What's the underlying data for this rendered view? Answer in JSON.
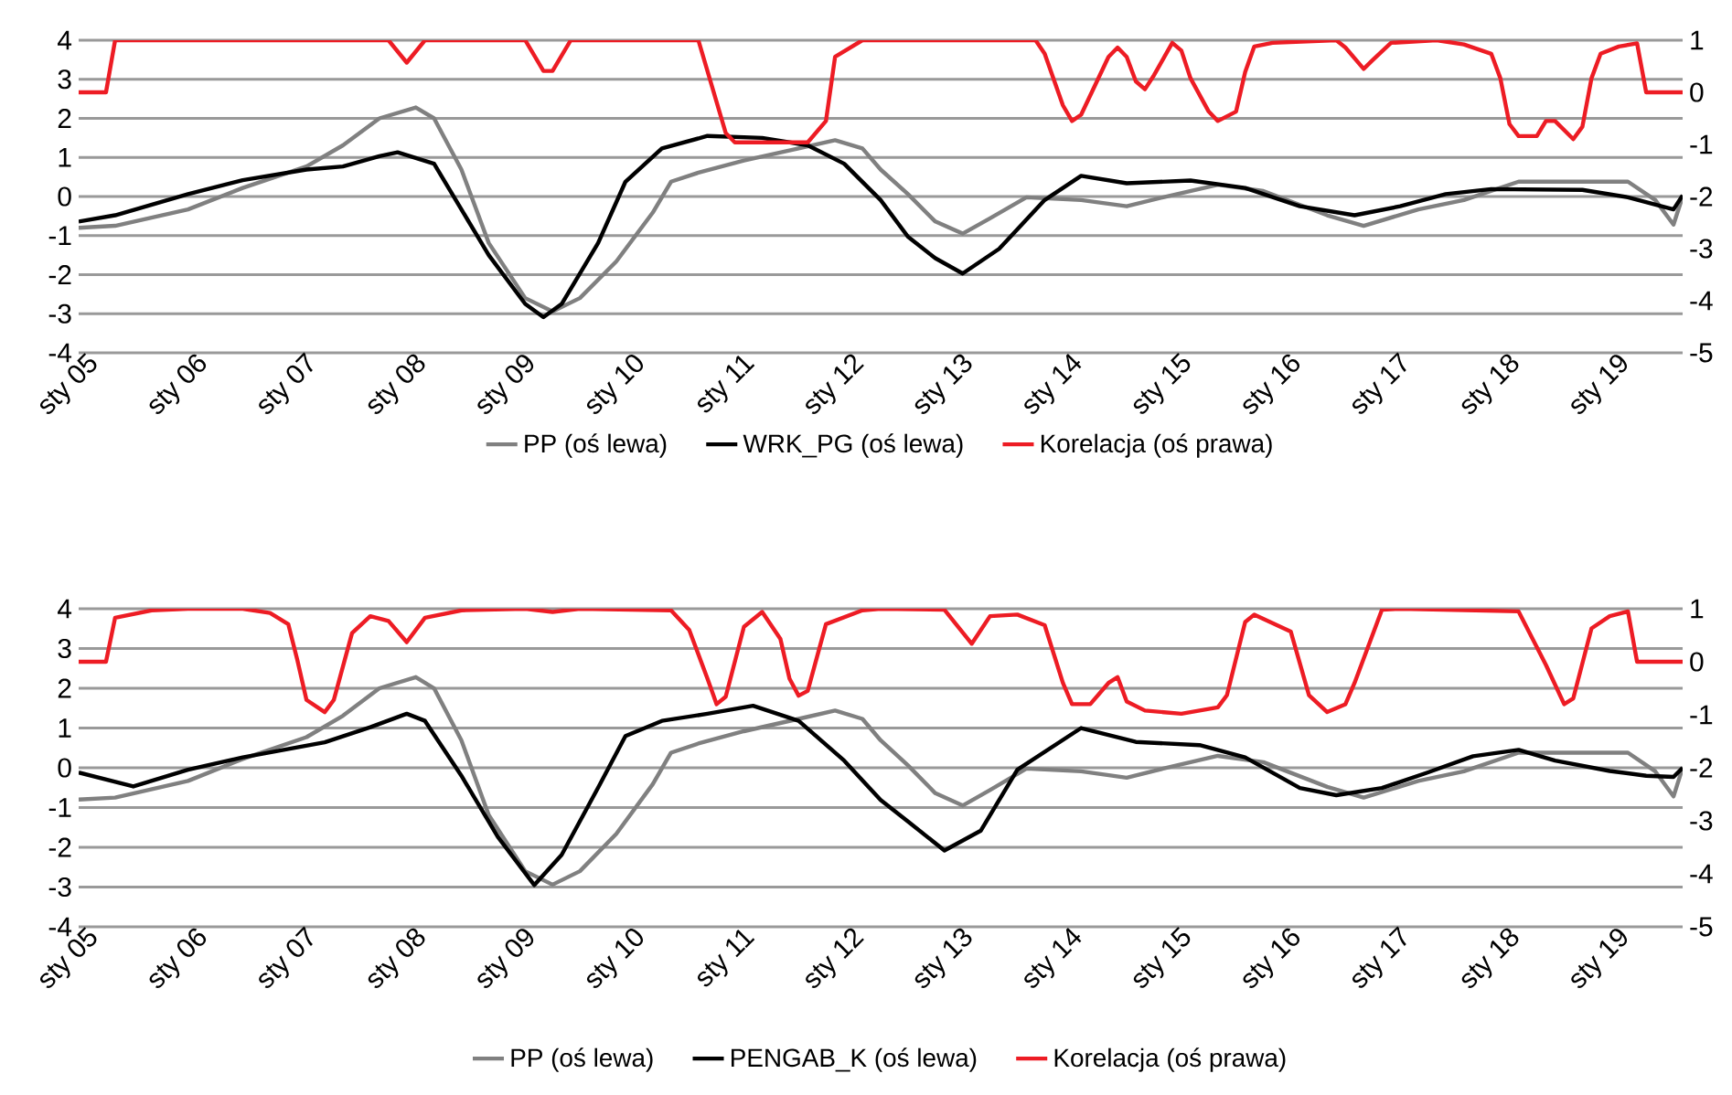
{
  "chart_data": [
    {
      "type": "line",
      "grid": "y",
      "legend": "bottom",
      "line_style": "solid",
      "xlim": [
        "2005-01",
        "2019-09"
      ],
      "xticks": [
        {
          "value": "2005-01",
          "label": "sty 05"
        },
        {
          "value": "2006-01",
          "label": "sty 06"
        },
        {
          "value": "2007-01",
          "label": "sty 07"
        },
        {
          "value": "2008-01",
          "label": "sty 08"
        },
        {
          "value": "2009-01",
          "label": "sty 09"
        },
        {
          "value": "2010-01",
          "label": "sty 10"
        },
        {
          "value": "2011-01",
          "label": "sty 11"
        },
        {
          "value": "2012-01",
          "label": "sty 12"
        },
        {
          "value": "2013-01",
          "label": "sty 13"
        },
        {
          "value": "2014-01",
          "label": "sty 14"
        },
        {
          "value": "2015-01",
          "label": "sty 15"
        },
        {
          "value": "2016-01",
          "label": "sty 16"
        },
        {
          "value": "2017-01",
          "label": "sty 17"
        },
        {
          "value": "2018-01",
          "label": "sty 18"
        },
        {
          "value": "2019-01",
          "label": "sty 19"
        }
      ],
      "ylim": [
        -4,
        4
      ],
      "yticks": [
        -4,
        -3,
        -2,
        -1,
        0,
        1,
        2,
        3,
        4
      ],
      "y2lim": [
        -5,
        1
      ],
      "y2ticks": [
        -5,
        -4,
        -3,
        -2,
        -1,
        0,
        1
      ],
      "series": [
        {
          "name": "PP (oś lewa)",
          "color": "#808080",
          "x": [
            "2005-01",
            "2005-05",
            "2006-01",
            "2006-07",
            "2007-02",
            "2007-06",
            "2007-10",
            "2008-02",
            "2008-04",
            "2008-07",
            "2008-10",
            "2009-02",
            "2009-05",
            "2009-08",
            "2009-12",
            "2010-04",
            "2010-06",
            "2010-09",
            "2011-02",
            "2011-08",
            "2011-12",
            "2012-03",
            "2012-05",
            "2012-08",
            "2012-11",
            "2013-02",
            "2013-05",
            "2013-09",
            "2014-03",
            "2014-08",
            "2014-12",
            "2015-06",
            "2015-11",
            "2016-06",
            "2016-10",
            "2017-04",
            "2017-09",
            "2018-03",
            "2018-10",
            "2019-03",
            "2019-06",
            "2019-08",
            "2019-09"
          ],
          "values": [
            -0.8,
            -0.75,
            -0.33,
            0.22,
            0.77,
            1.31,
            2.0,
            2.28,
            2.0,
            0.69,
            -1.19,
            -2.6,
            -2.94,
            -2.6,
            -1.66,
            -0.41,
            0.38,
            0.61,
            0.92,
            1.23,
            1.44,
            1.23,
            0.69,
            0.06,
            -0.64,
            -0.95,
            -0.56,
            -0.02,
            -0.09,
            -0.25,
            -0.02,
            0.3,
            0.14,
            -0.48,
            -0.75,
            -0.33,
            -0.09,
            0.38,
            0.38,
            0.38,
            -0.09,
            -0.72,
            0.0
          ]
        },
        {
          "name": "WRK_PG (oś lewa)",
          "color": "#000000",
          "x": [
            "2005-01",
            "2005-05",
            "2006-01",
            "2006-07",
            "2007-02",
            "2007-06",
            "2007-10",
            "2007-12",
            "2008-04",
            "2008-07",
            "2008-10",
            "2009-02",
            "2009-04",
            "2009-06",
            "2009-10",
            "2010-01",
            "2010-05",
            "2010-10",
            "2011-04",
            "2011-09",
            "2012-01",
            "2012-05",
            "2012-08",
            "2012-11",
            "2013-02",
            "2013-06",
            "2013-11",
            "2014-03",
            "2014-08",
            "2015-03",
            "2015-09",
            "2016-03",
            "2016-09",
            "2017-02",
            "2017-07",
            "2017-12",
            "2018-10",
            "2019-03",
            "2019-08",
            "2019-09"
          ],
          "values": [
            -0.64,
            -0.48,
            0.06,
            0.42,
            0.69,
            0.77,
            1.03,
            1.13,
            0.84,
            -0.33,
            -1.5,
            -2.75,
            -3.09,
            -2.75,
            -1.19,
            0.38,
            1.23,
            1.55,
            1.5,
            1.31,
            0.84,
            -0.09,
            -1.03,
            -1.58,
            -1.97,
            -1.34,
            -0.09,
            0.53,
            0.34,
            0.41,
            0.22,
            -0.25,
            -0.48,
            -0.25,
            0.06,
            0.19,
            0.17,
            -0.02,
            -0.33,
            0.03
          ]
        },
        {
          "name": "Korelacja (oś prawa)",
          "color": "#ed1c24",
          "axis": "y2",
          "x": [
            "2005-01",
            "2005-04",
            "2005-05",
            "2007-11",
            "2008-01",
            "2008-03",
            "2009-02",
            "2009-04",
            "2009-05",
            "2009-07",
            "2010-09",
            "2010-12",
            "2011-01",
            "2011-09",
            "2011-11",
            "2011-12",
            "2012-03",
            "2013-01",
            "2013-10",
            "2013-11",
            "2014-01",
            "2014-02",
            "2014-03",
            "2014-06",
            "2014-07",
            "2014-08",
            "2014-09",
            "2014-10",
            "2014-11",
            "2015-01",
            "2015-02",
            "2015-03",
            "2015-05",
            "2015-06",
            "2015-08",
            "2015-09",
            "2015-10",
            "2015-12",
            "2016-07",
            "2016-08",
            "2016-10",
            "2016-11",
            "2017-01",
            "2017-06",
            "2017-09",
            "2017-12",
            "2018-01",
            "2018-02",
            "2018-03",
            "2018-05",
            "2018-06",
            "2018-07",
            "2018-09",
            "2018-10",
            "2018-11",
            "2018-12",
            "2019-02",
            "2019-04",
            "2019-05",
            "2019-09"
          ],
          "values": [
            0.0,
            0.0,
            1.0,
            1.0,
            0.57,
            1.0,
            1.0,
            0.41,
            0.41,
            1.0,
            1.0,
            -0.78,
            -0.96,
            -0.96,
            -0.55,
            0.68,
            1.0,
            1.0,
            1.0,
            0.74,
            -0.25,
            -0.55,
            -0.43,
            0.68,
            0.86,
            0.68,
            0.21,
            0.06,
            0.33,
            0.95,
            0.8,
            0.27,
            -0.37,
            -0.55,
            -0.37,
            0.39,
            0.88,
            0.95,
            1.0,
            0.86,
            0.45,
            0.62,
            0.95,
            1.0,
            0.92,
            0.74,
            0.27,
            -0.61,
            -0.84,
            -0.84,
            -0.55,
            -0.55,
            -0.9,
            -0.66,
            0.27,
            0.74,
            0.88,
            0.94,
            0.0,
            0.0
          ]
        }
      ]
    },
    {
      "type": "line",
      "grid": "y",
      "legend": "bottom",
      "line_style": "solid",
      "xlim": [
        "2005-01",
        "2019-09"
      ],
      "xticks": [
        {
          "value": "2005-01",
          "label": "sty 05"
        },
        {
          "value": "2006-01",
          "label": "sty 06"
        },
        {
          "value": "2007-01",
          "label": "sty 07"
        },
        {
          "value": "2008-01",
          "label": "sty 08"
        },
        {
          "value": "2009-01",
          "label": "sty 09"
        },
        {
          "value": "2010-01",
          "label": "sty 10"
        },
        {
          "value": "2011-01",
          "label": "sty 11"
        },
        {
          "value": "2012-01",
          "label": "sty 12"
        },
        {
          "value": "2013-01",
          "label": "sty 13"
        },
        {
          "value": "2014-01",
          "label": "sty 14"
        },
        {
          "value": "2015-01",
          "label": "sty 15"
        },
        {
          "value": "2016-01",
          "label": "sty 16"
        },
        {
          "value": "2017-01",
          "label": "sty 17"
        },
        {
          "value": "2018-01",
          "label": "sty 18"
        },
        {
          "value": "2019-01",
          "label": "sty 19"
        }
      ],
      "ylim": [
        -4,
        4
      ],
      "yticks": [
        -4,
        -3,
        -2,
        -1,
        0,
        1,
        2,
        3,
        4
      ],
      "y2lim": [
        -5,
        1
      ],
      "y2ticks": [
        -5,
        -4,
        -3,
        -2,
        -1,
        0,
        1
      ],
      "series": [
        {
          "name": "PP (oś lewa)",
          "color": "#808080",
          "x": [
            "2005-01",
            "2005-05",
            "2006-01",
            "2006-07",
            "2007-02",
            "2007-06",
            "2007-10",
            "2008-02",
            "2008-04",
            "2008-07",
            "2008-10",
            "2009-02",
            "2009-05",
            "2009-08",
            "2009-12",
            "2010-04",
            "2010-06",
            "2010-09",
            "2011-02",
            "2011-08",
            "2011-12",
            "2012-03",
            "2012-05",
            "2012-08",
            "2012-11",
            "2013-02",
            "2013-05",
            "2013-09",
            "2014-03",
            "2014-08",
            "2014-12",
            "2015-06",
            "2015-11",
            "2016-06",
            "2016-10",
            "2017-04",
            "2017-09",
            "2018-03",
            "2018-10",
            "2019-03",
            "2019-06",
            "2019-08",
            "2019-09"
          ],
          "values": [
            -0.8,
            -0.75,
            -0.33,
            0.22,
            0.77,
            1.31,
            2.0,
            2.28,
            2.0,
            0.69,
            -1.19,
            -2.6,
            -2.94,
            -2.6,
            -1.66,
            -0.41,
            0.38,
            0.61,
            0.92,
            1.23,
            1.44,
            1.23,
            0.69,
            0.06,
            -0.64,
            -0.95,
            -0.56,
            -0.02,
            -0.09,
            -0.25,
            -0.02,
            0.3,
            0.14,
            -0.48,
            -0.75,
            -0.33,
            -0.09,
            0.38,
            0.38,
            0.38,
            -0.09,
            -0.72,
            0.0
          ]
        },
        {
          "name": "PENGAB_K (oś lewa)",
          "color": "#000000",
          "x": [
            "2005-01",
            "2005-07",
            "2006-01",
            "2006-07",
            "2007-04",
            "2007-09",
            "2008-01",
            "2008-03",
            "2008-07",
            "2008-11",
            "2009-03",
            "2009-06",
            "2009-10",
            "2010-01",
            "2010-05",
            "2010-10",
            "2011-03",
            "2011-08",
            "2012-01",
            "2012-05",
            "2012-08",
            "2012-12",
            "2013-04",
            "2013-08",
            "2014-03",
            "2014-09",
            "2015-04",
            "2015-09",
            "2016-03",
            "2016-07",
            "2016-12",
            "2017-05",
            "2017-10",
            "2018-03",
            "2018-07",
            "2019-01",
            "2019-05",
            "2019-08",
            "2019-09"
          ],
          "values": [
            -0.12,
            -0.47,
            -0.05,
            0.26,
            0.64,
            1.02,
            1.36,
            1.18,
            -0.2,
            -1.74,
            -2.95,
            -2.19,
            -0.5,
            0.8,
            1.18,
            1.36,
            1.56,
            1.18,
            0.18,
            -0.81,
            -1.35,
            -2.08,
            -1.58,
            -0.05,
            1.0,
            0.65,
            0.57,
            0.26,
            -0.51,
            -0.69,
            -0.51,
            -0.12,
            0.29,
            0.45,
            0.18,
            -0.08,
            -0.2,
            -0.23,
            0.0
          ]
        },
        {
          "name": "Korelacja (oś prawa)",
          "color": "#ed1c24",
          "axis": "y2",
          "x": [
            "2005-01",
            "2005-04",
            "2005-05",
            "2005-09",
            "2006-01",
            "2006-07",
            "2006-10",
            "2006-12",
            "2007-01",
            "2007-02",
            "2007-04",
            "2007-05",
            "2007-07",
            "2007-09",
            "2007-11",
            "2008-01",
            "2008-03",
            "2008-07",
            "2009-02",
            "2009-05",
            "2009-08",
            "2010-06",
            "2010-08",
            "2010-10",
            "2010-11",
            "2010-12",
            "2011-02",
            "2011-04",
            "2011-06",
            "2011-07",
            "2011-08",
            "2011-09",
            "2011-11",
            "2012-03",
            "2012-05",
            "2012-12",
            "2013-03",
            "2013-05",
            "2013-08",
            "2013-11",
            "2014-01",
            "2014-02",
            "2014-04",
            "2014-06",
            "2014-07",
            "2014-08",
            "2014-10",
            "2015-02",
            "2015-06",
            "2015-07",
            "2015-09",
            "2015-10",
            "2016-02",
            "2016-04",
            "2016-06",
            "2016-08",
            "2016-09",
            "2016-12",
            "2017-02",
            "2018-03",
            "2018-06",
            "2018-08",
            "2018-09",
            "2018-11",
            "2019-01",
            "2019-03",
            "2019-04",
            "2019-09"
          ],
          "values": [
            0.0,
            0.0,
            0.83,
            0.97,
            1.0,
            1.0,
            0.92,
            0.71,
            0.03,
            -0.72,
            -0.95,
            -0.72,
            0.54,
            0.86,
            0.77,
            0.37,
            0.83,
            0.97,
            1.0,
            0.94,
            1.0,
            0.97,
            0.6,
            -0.32,
            -0.8,
            -0.66,
            0.66,
            0.94,
            0.43,
            -0.32,
            -0.64,
            -0.55,
            0.71,
            0.97,
            1.0,
            0.98,
            0.34,
            0.86,
            0.89,
            0.69,
            -0.4,
            -0.8,
            -0.8,
            -0.4,
            -0.29,
            -0.75,
            -0.92,
            -0.98,
            -0.86,
            -0.63,
            0.75,
            0.89,
            0.57,
            -0.63,
            -0.95,
            -0.8,
            -0.4,
            0.98,
            1.0,
            0.95,
            -0.06,
            -0.8,
            -0.69,
            0.63,
            0.86,
            0.95,
            0.0,
            0.0
          ]
        }
      ]
    }
  ]
}
